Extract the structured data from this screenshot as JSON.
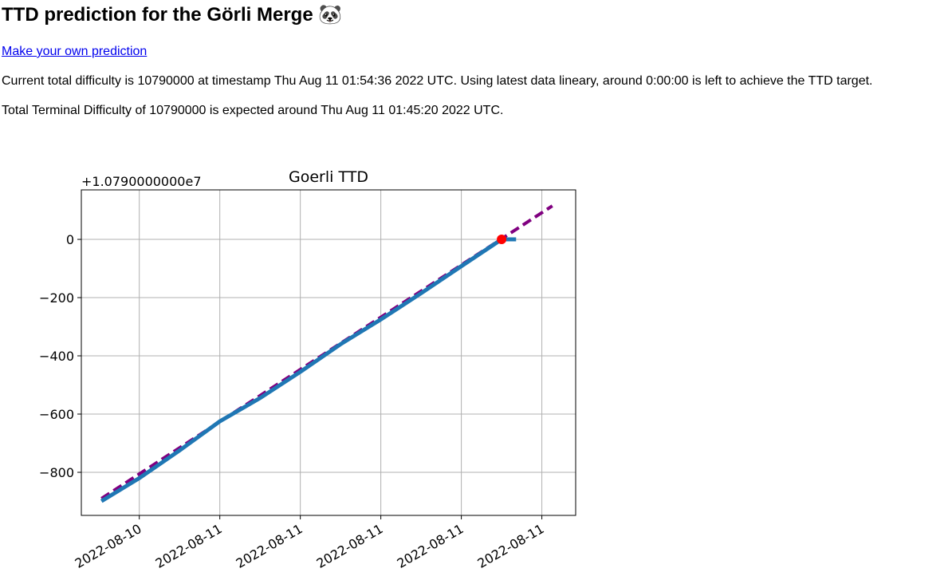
{
  "header": {
    "title": "TTD prediction for the Görli Merge 🐼"
  },
  "link": "Make your own prediction",
  "paragraphs": [
    "Current total difficulty is 10790000 at timestamp Thu Aug 11 01:54:36 2022 UTC. Using latest data lineary, around 0:00:00 is left to achieve the TTD target.",
    "Total Terminal Difficulty of 10790000 is expected around Thu Aug 11 01:45:20 2022 UTC."
  ],
  "chart_data": {
    "type": "line",
    "title": "Goerli TTD",
    "y_offset_label": "+1.0790000000e7",
    "xlim": [
      -0.72,
      5.42
    ],
    "ylim": [
      -948,
      170
    ],
    "grid": true,
    "xticks": [
      {
        "value": 0,
        "label": "2022-08-10"
      },
      {
        "value": 1,
        "label": "2022-08-11"
      },
      {
        "value": 2,
        "label": "2022-08-11"
      },
      {
        "value": 3,
        "label": "2022-08-11"
      },
      {
        "value": 4,
        "label": "2022-08-11"
      },
      {
        "value": 5,
        "label": "2022-08-11"
      }
    ],
    "yticks": [
      {
        "value": -800,
        "label": "−800"
      },
      {
        "value": -600,
        "label": "−600"
      },
      {
        "value": -400,
        "label": "−400"
      },
      {
        "value": -200,
        "label": "−200"
      },
      0
    ],
    "series": [
      {
        "color": "#800080",
        "linestyle": "dashed",
        "x": [
          -0.47,
          5.13
        ],
        "values": [
          -890,
          115
        ]
      },
      {
        "color": "#1f77b4",
        "linestyle": "solid",
        "x": [
          -0.47,
          0.0,
          0.5,
          1.0,
          1.5,
          2.0,
          2.5,
          3.0,
          3.5,
          4.0,
          4.5,
          4.68
        ],
        "values": [
          -899,
          -820,
          -725,
          -625,
          -545,
          -455,
          -360,
          -275,
          -185,
          -92,
          0,
          0
        ]
      },
      {
        "color": "#ff0000",
        "linestyle": "marker",
        "x": [
          4.5
        ],
        "values": [
          0
        ]
      }
    ]
  }
}
